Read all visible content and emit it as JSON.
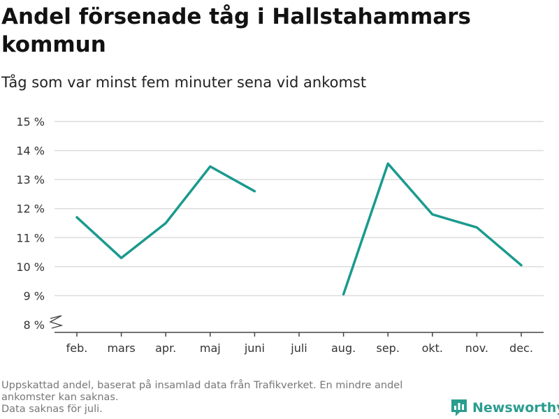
{
  "title": "Andel försenade tåg i Hallstahammars kommun",
  "subtitle": "Tåg som var minst fem minuter sena vid ankomst",
  "footnote": {
    "line1": "Uppskattad andel, baserat på insamlad data från Trafikverket. En mindre andel ankomster kan saknas.",
    "line2": "Data saknas för juli."
  },
  "brand": {
    "name": "Newsworthy",
    "icon": "newsworthy-logo-icon",
    "color": "#2a9d8f"
  },
  "chart_data": {
    "type": "line",
    "categories": [
      "feb.",
      "mars",
      "apr.",
      "maj",
      "juni",
      "juli",
      "aug.",
      "sep.",
      "okt.",
      "nov.",
      "dec."
    ],
    "series": [
      {
        "values": [
          11.7,
          10.3,
          11.5,
          13.45,
          12.6,
          null,
          9.05,
          13.55,
          11.8,
          11.35,
          10.05
        ],
        "color": "#1a9a8e"
      }
    ],
    "yticks": [
      "8 %",
      "9 %",
      "10 %",
      "11 %",
      "12 %",
      "13 %",
      "14 %",
      "15 %"
    ],
    "ylim": [
      8,
      15
    ],
    "grid": true,
    "y_axis_break": true
  }
}
